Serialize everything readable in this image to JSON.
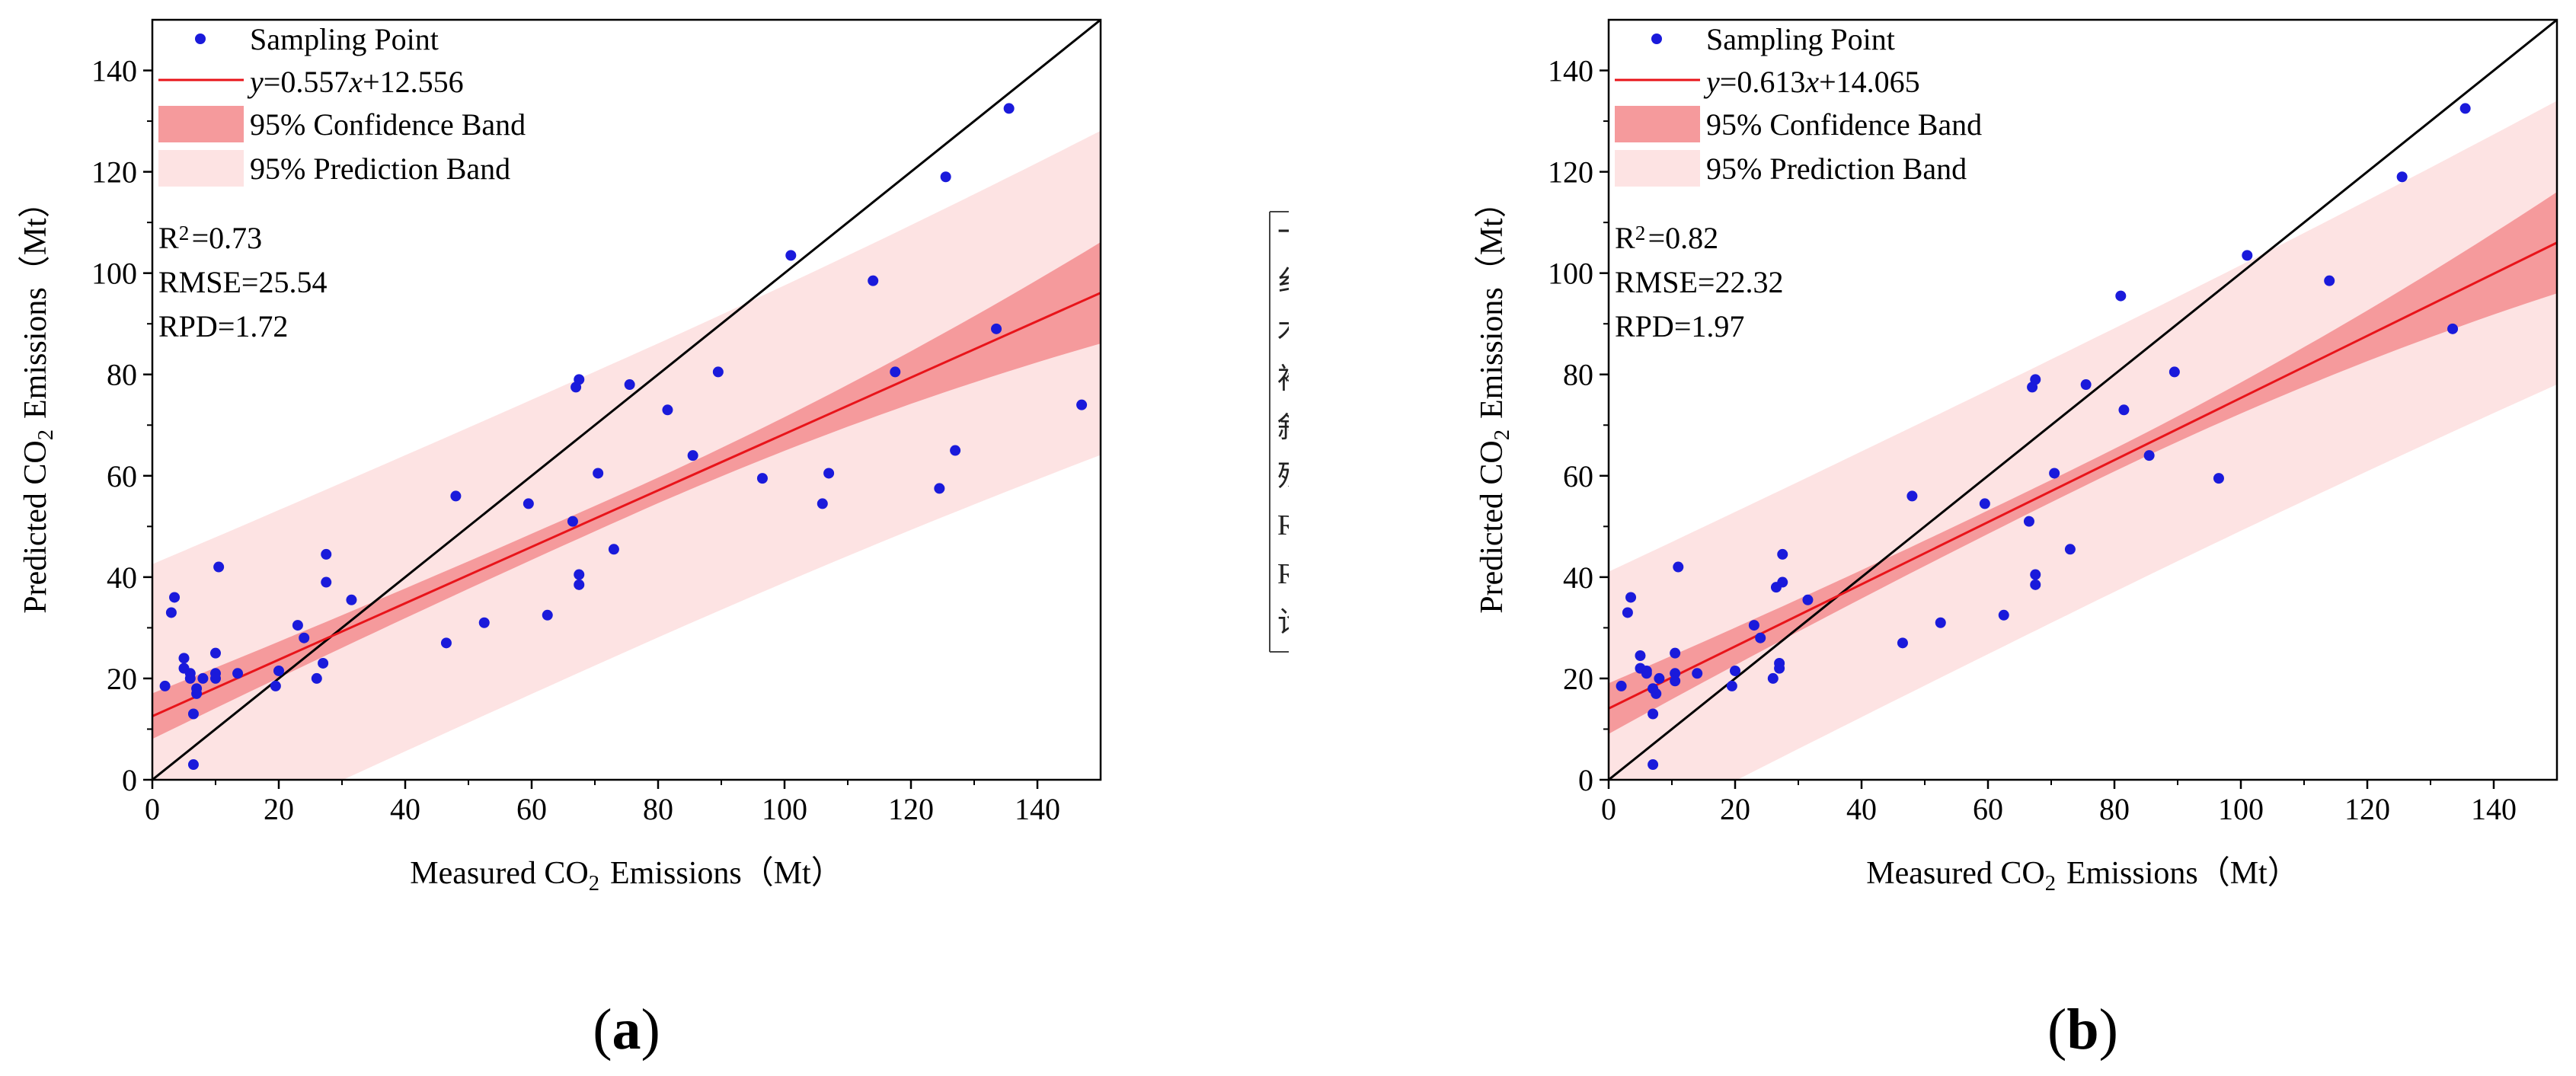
{
  "chart_data": [
    {
      "type": "scatter",
      "panel_label": "(a)",
      "xlabel": "Measured CO₂ Emissions（Mt）",
      "ylabel": "Predicted CO₂ Emissions（Mt）",
      "xlim": [
        0,
        150
      ],
      "ylim": [
        0,
        150
      ],
      "xticks": [
        0,
        20,
        40,
        60,
        80,
        100,
        120,
        140
      ],
      "yticks": [
        0,
        20,
        40,
        60,
        80,
        100,
        120,
        140
      ],
      "legend": {
        "position": "top-left",
        "entries": [
          "Sampling Point",
          "y=0.557x+12.556",
          "95% Confidence Band",
          "95% Prediction Band"
        ]
      },
      "fit": {
        "slope": 0.557,
        "intercept": 12.556,
        "label": "y=0.557x+12.556"
      },
      "confidence_band_halfwidth": {
        "at_min": 4.5,
        "at_center": 2.5,
        "at_max": 10
      },
      "prediction_band_halfwidth": {
        "at_min": 30,
        "at_center": 29,
        "at_max": 32
      },
      "stats": [
        "R²=0.73",
        "RMSE=25.54",
        "RPD=1.72"
      ],
      "points": [
        [
          2,
          18.5
        ],
        [
          3,
          33
        ],
        [
          3.5,
          36
        ],
        [
          5,
          22
        ],
        [
          5,
          24
        ],
        [
          6,
          20
        ],
        [
          6.5,
          3
        ],
        [
          6.5,
          13
        ],
        [
          7,
          17
        ],
        [
          6,
          21
        ],
        [
          7,
          18
        ],
        [
          8,
          20
        ],
        [
          10,
          25
        ],
        [
          10,
          20
        ],
        [
          10.5,
          42
        ],
        [
          10,
          21
        ],
        [
          13.5,
          21
        ],
        [
          19.5,
          18.5
        ],
        [
          20,
          21.5
        ],
        [
          23,
          30.5
        ],
        [
          24,
          28
        ],
        [
          26,
          20
        ],
        [
          27,
          23
        ],
        [
          27.5,
          44.5
        ],
        [
          27.5,
          39
        ],
        [
          31.5,
          35.5
        ],
        [
          46.5,
          27
        ],
        [
          48,
          56
        ],
        [
          52.5,
          31
        ],
        [
          59.5,
          54.5
        ],
        [
          62.5,
          32.5
        ],
        [
          66.5,
          51
        ],
        [
          67,
          77.5
        ],
        [
          67.5,
          79
        ],
        [
          67.5,
          40.5
        ],
        [
          67.5,
          38.5
        ],
        [
          70.5,
          60.5
        ],
        [
          73,
          45.5
        ],
        [
          75.5,
          78
        ],
        [
          81.5,
          73
        ],
        [
          85.5,
          64
        ],
        [
          89.5,
          80.5
        ],
        [
          96.5,
          59.5
        ],
        [
          101,
          103.5
        ],
        [
          106,
          54.5
        ],
        [
          107,
          60.5
        ],
        [
          114,
          98.5
        ],
        [
          117.5,
          80.5
        ],
        [
          124.5,
          57.5
        ],
        [
          125.5,
          119
        ],
        [
          127,
          65
        ],
        [
          133.5,
          89
        ],
        [
          135.5,
          132.5
        ],
        [
          147,
          74
        ]
      ]
    },
    {
      "type": "scatter",
      "panel_label": "(b)",
      "xlabel": "Measured CO₂ Emissions（Mt）",
      "ylabel": "Predicted CO₂ Emissions（Mt）",
      "xlim": [
        0,
        150
      ],
      "ylim": [
        0,
        150
      ],
      "xticks": [
        0,
        20,
        40,
        60,
        80,
        100,
        120,
        140
      ],
      "yticks": [
        0,
        20,
        40,
        60,
        80,
        100,
        120,
        140
      ],
      "legend": {
        "position": "top-left",
        "entries": [
          "Sampling Point",
          "y=0.613x+14.065",
          "95% Confidence Band",
          "95% Prediction Band"
        ]
      },
      "fit": {
        "slope": 0.613,
        "intercept": 14.065,
        "label": "y=0.613x+14.065"
      },
      "confidence_band_halfwidth": {
        "at_min": 5,
        "at_center": 2.2,
        "at_max": 10
      },
      "prediction_band_halfwidth": {
        "at_min": 27,
        "at_center": 26,
        "at_max": 28
      },
      "stats": [
        "R²=0.82",
        "RMSE=22.32",
        "RPD=1.97"
      ],
      "points": [
        [
          2,
          18.5
        ],
        [
          3,
          33
        ],
        [
          3.5,
          36
        ],
        [
          5,
          22
        ],
        [
          5,
          24.5
        ],
        [
          6,
          21.5
        ],
        [
          7,
          3
        ],
        [
          7,
          13
        ],
        [
          7.5,
          17
        ],
        [
          6,
          21
        ],
        [
          7,
          18
        ],
        [
          8,
          20
        ],
        [
          10.5,
          25
        ],
        [
          10.5,
          21
        ],
        [
          11,
          42
        ],
        [
          10.5,
          19.5
        ],
        [
          14,
          21
        ],
        [
          19.5,
          18.5
        ],
        [
          20,
          21.5
        ],
        [
          23,
          30.5
        ],
        [
          24,
          28
        ],
        [
          26,
          20
        ],
        [
          27,
          23
        ],
        [
          27.5,
          44.5
        ],
        [
          27.5,
          39
        ],
        [
          31.5,
          35.5
        ],
        [
          46.5,
          27
        ],
        [
          48,
          56
        ],
        [
          52.5,
          31
        ],
        [
          59.5,
          54.5
        ],
        [
          62.5,
          32.5
        ],
        [
          66.5,
          51
        ],
        [
          67,
          77.5
        ],
        [
          67.5,
          79
        ],
        [
          67.5,
          40.5
        ],
        [
          67.5,
          38.5
        ],
        [
          70.5,
          60.5
        ],
        [
          73,
          45.5
        ],
        [
          75.5,
          78
        ],
        [
          81.5,
          73
        ],
        [
          81,
          95.5
        ],
        [
          85.5,
          64
        ],
        [
          89.5,
          80.5
        ],
        [
          96.5,
          59.5
        ],
        [
          101,
          103.5
        ],
        [
          114,
          98.5
        ],
        [
          125.5,
          119
        ],
        [
          133.5,
          89
        ],
        [
          135.5,
          132.5
        ],
        [
          26.5,
          38
        ],
        [
          27,
          22
        ]
      ]
    }
  ],
  "colors": {
    "point": "#1a1adb",
    "fit_line": "#e8141a",
    "confidence_band": "#f59a9c",
    "prediction_band": "#fde3e3",
    "identity_line": "#000000"
  },
  "middle_fragment": {
    "glyphs": [
      "一",
      "纟",
      "木",
      "褚",
      "斜",
      "残",
      "R",
      "R",
      "诊"
    ]
  }
}
